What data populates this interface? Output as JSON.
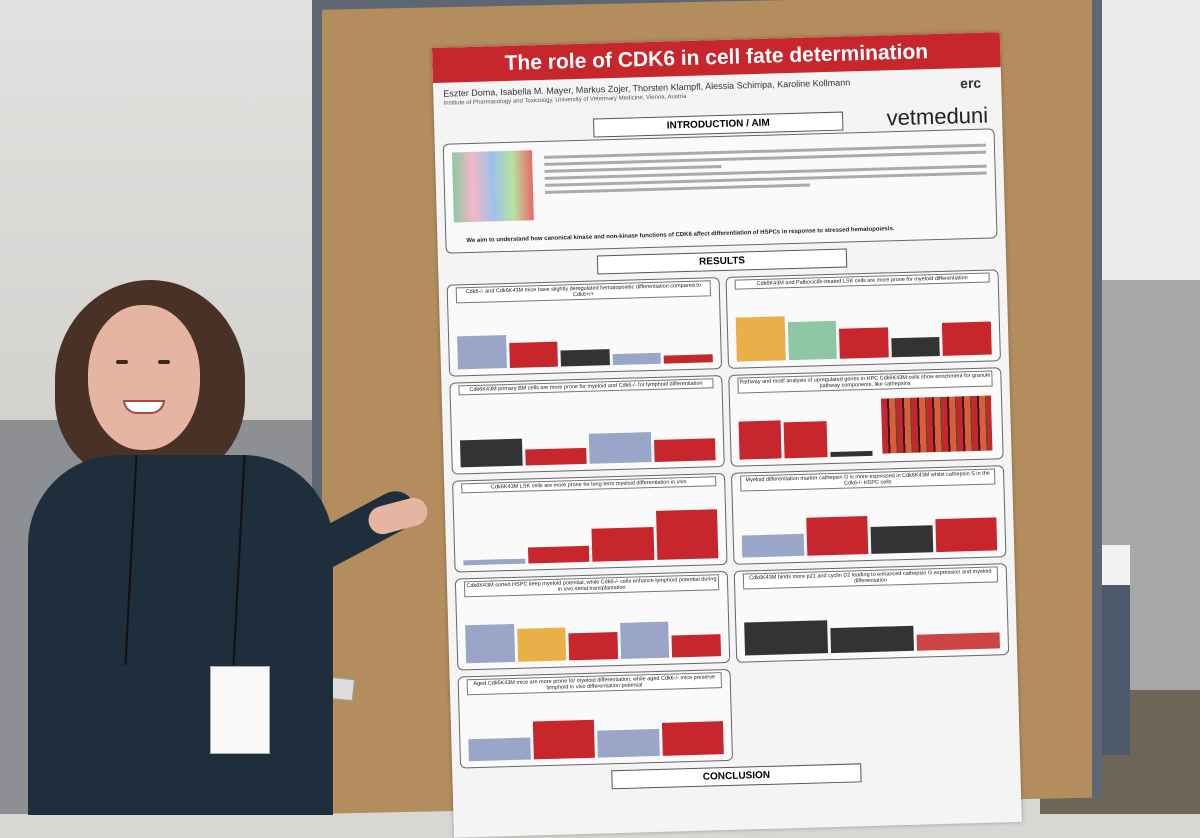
{
  "poster": {
    "title": "The role of CDK6 in cell fate determination",
    "authors": "Eszter Doma, Isabella M. Mayer, Markus Zojer, Thorsten Klampfl, Alessia Schirripa, Karoline Kollmann",
    "affiliation": "Institute of Pharmacology and Toxicology, University of Veterinary Medicine, Vienna, Austria",
    "logos": [
      "erc",
      "vetmeduni"
    ],
    "intro_heading": "INTRODUCTION / AIM",
    "aim": "We aim to understand how canonical kinase and non-kinase functions of CDK6 affect differentiation of HSPCs in response to stressed hematopoiesis.",
    "results_heading": "RESULTS",
    "conclusion_heading": "CONCLUSION",
    "panels": [
      "Cdk6-/- and Cdk6K43M mice have slightly deregulated hematopoietic differentiation compared to Cdk6+/+",
      "Cdk6K43M and Palbociclib-treated LSK cells are more prone for myeloid differentiation",
      "Cdk6K43M primary BM cells are more prone for myeloid and Cdk6-/- for lymphoid differentiation",
      "Pathway and motif analysis of upregulated genes in HPC Cdk6K43M cells show enrichment for granule pathway components, like cathepsins",
      "Cdk6K43M LSK cells are more prone for long-term myeloid differentiation in vivo",
      "Myeloid differentiation marker cathepsin G is more expressed in Cdk6K43M whilst cathepsin S in the Cdk6-/- HSPC cells",
      "Cdk6K43M sorted HSPC keep myeloid potential, while Cdk6-/- cells enhance lymphoid potential during in vivo serial transplantation",
      "Cdk6K43M binds more p21 and cyclin D2 leading to enhanced cathepsin G expression and myeloid differentiation",
      "Aged Cdk6K43M mice are more prone for myeloid differentiation, while aged Cdk6-/- mice preserve lymphoid in vivo differentiation potential",
      ""
    ]
  },
  "colors": {
    "title_red": "#c8262d",
    "cork": "#b48d5f",
    "frame": "#5d6672"
  }
}
